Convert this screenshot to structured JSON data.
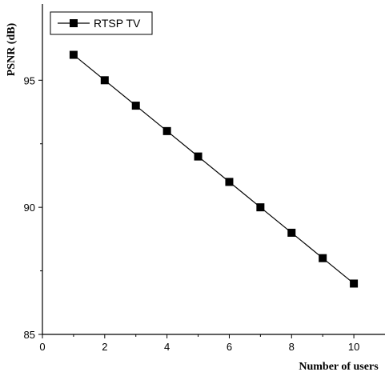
{
  "chart_data": {
    "type": "line",
    "title": "",
    "xlabel": "Number of users",
    "ylabel": "PSNR (dB)",
    "xlim": [
      0,
      11
    ],
    "ylim": [
      85,
      98
    ],
    "xticks": [
      0,
      2,
      4,
      6,
      8,
      10
    ],
    "yticks": [
      85,
      90,
      95
    ],
    "grid": false,
    "legend_position": "top-left",
    "series": [
      {
        "name": "RTSP TV",
        "marker": "square",
        "color": "#000000",
        "x": [
          1,
          2,
          3,
          4,
          5,
          6,
          7,
          8,
          9,
          10
        ],
        "y": [
          96,
          95,
          94,
          93,
          92,
          91,
          90,
          89,
          88,
          87
        ]
      }
    ]
  }
}
